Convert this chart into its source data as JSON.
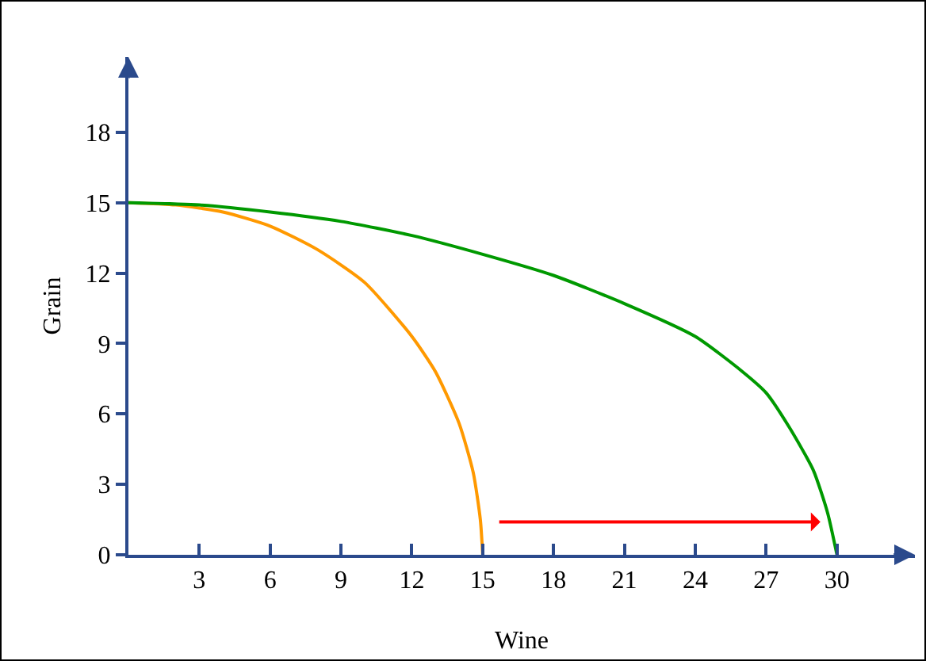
{
  "chart_data": {
    "type": "line",
    "xlabel": "Wine",
    "ylabel": "Grain",
    "xlim": [
      0,
      33.3
    ],
    "ylim": [
      0,
      21.2
    ],
    "xticks": [
      {
        "value": 0,
        "label": null
      },
      3,
      6,
      9,
      12,
      15,
      18,
      21,
      24,
      27,
      30
    ],
    "yticks": [
      0,
      3,
      6,
      9,
      12,
      15,
      18
    ],
    "grid": false,
    "marker": "none",
    "line_style": "solid",
    "series": [
      {
        "color": "#ff9900",
        "x": [
          0,
          2,
          4,
          6,
          8,
          10,
          12,
          13,
          14,
          14.6,
          14.9,
          15
        ],
        "values": [
          15,
          14.9,
          14.6,
          14,
          13,
          11.6,
          9.3,
          7.8,
          5.6,
          3.5,
          1.5,
          0
        ]
      },
      {
        "color": "#009900",
        "x": [
          0,
          3,
          6,
          9,
          12,
          15,
          18,
          21,
          24,
          26,
          27,
          28,
          29,
          29.6,
          30
        ],
        "values": [
          15,
          14.9,
          14.6,
          14.2,
          13.6,
          12.8,
          11.9,
          10.7,
          9.3,
          7.8,
          6.9,
          5.4,
          3.6,
          1.8,
          0
        ]
      }
    ]
  }
}
